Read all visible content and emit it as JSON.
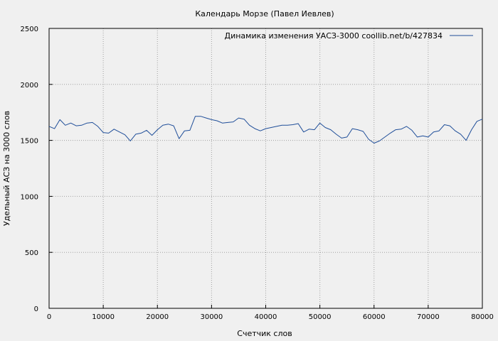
{
  "chart_data": {
    "type": "line",
    "title": "Календарь Морзе (Павел Иевлев)",
    "xlabel": "Счетчик слов",
    "ylabel": "Удельный АСЗ на 3000 слов",
    "xlim": [
      0,
      80000
    ],
    "ylim": [
      0,
      2500
    ],
    "x_ticks": [
      0,
      10000,
      20000,
      30000,
      40000,
      50000,
      60000,
      70000,
      80000
    ],
    "y_ticks": [
      0,
      500,
      1000,
      1500,
      2000,
      2500
    ],
    "grid": true,
    "legend_position": "top-right",
    "series": [
      {
        "name": "Динамика изменения УАСЗ-3000  coollib.net/b/427834",
        "color": "#1f4e99",
        "x": [
          0,
          1000,
          2000,
          3000,
          4000,
          5000,
          6000,
          7000,
          8000,
          9000,
          10000,
          11000,
          12000,
          13000,
          14000,
          15000,
          16000,
          17000,
          18000,
          19000,
          20000,
          21000,
          22000,
          23000,
          24000,
          25000,
          26000,
          27000,
          28000,
          29000,
          30000,
          31000,
          32000,
          33000,
          34000,
          35000,
          36000,
          37000,
          38000,
          39000,
          40000,
          41000,
          42000,
          43000,
          44000,
          45000,
          46000,
          47000,
          48000,
          49000,
          50000,
          51000,
          52000,
          53000,
          54000,
          55000,
          56000,
          57000,
          58000,
          59000,
          60000,
          61000,
          62000,
          63000,
          64000,
          65000,
          66000,
          67000,
          68000,
          69000,
          70000,
          71000,
          72000,
          73000,
          74000,
          75000,
          76000,
          77000,
          78000,
          79000,
          80000
        ],
        "y": [
          1625,
          1605,
          1685,
          1635,
          1655,
          1630,
          1635,
          1655,
          1660,
          1625,
          1570,
          1565,
          1600,
          1575,
          1550,
          1495,
          1555,
          1565,
          1590,
          1545,
          1595,
          1635,
          1645,
          1630,
          1515,
          1585,
          1590,
          1715,
          1715,
          1700,
          1685,
          1675,
          1655,
          1660,
          1665,
          1700,
          1690,
          1635,
          1605,
          1585,
          1605,
          1615,
          1625,
          1635,
          1635,
          1640,
          1650,
          1575,
          1600,
          1595,
          1655,
          1615,
          1595,
          1555,
          1520,
          1530,
          1605,
          1595,
          1580,
          1510,
          1475,
          1495,
          1530,
          1565,
          1595,
          1600,
          1625,
          1590,
          1530,
          1540,
          1530,
          1575,
          1585,
          1640,
          1630,
          1585,
          1555,
          1500,
          1595,
          1670,
          1690
        ]
      }
    ]
  }
}
